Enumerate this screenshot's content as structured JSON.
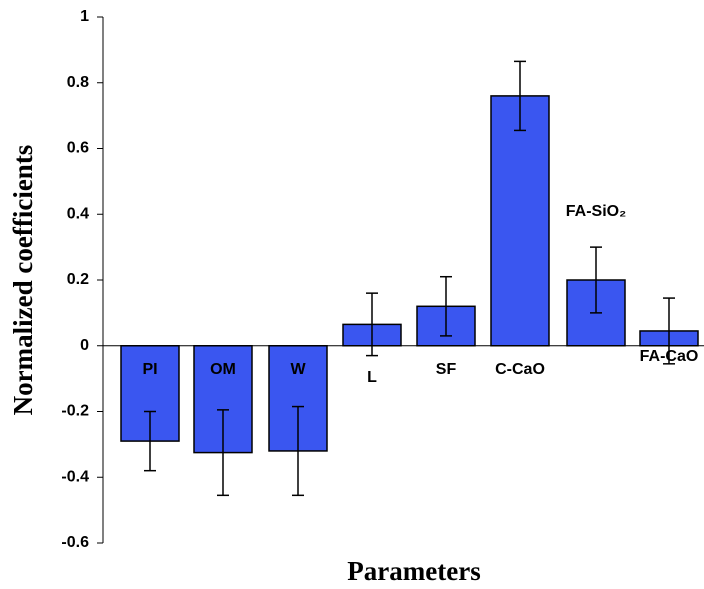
{
  "chart_data": {
    "type": "bar",
    "xlabel": "Parameters",
    "ylabel": "Normalized coefficients",
    "categories": [
      "PI",
      "OM",
      "W",
      "L",
      "SF",
      "C-CaO",
      "FA-SiO₂",
      "FA-CaO"
    ],
    "values": [
      -0.29,
      -0.325,
      -0.32,
      0.065,
      0.12,
      0.76,
      0.2,
      0.045
    ],
    "errors": [
      0.09,
      0.13,
      0.135,
      0.095,
      0.09,
      0.105,
      0.1,
      0.1
    ],
    "color": "#3a56f0",
    "ylim": [
      -0.6,
      1
    ],
    "yticks": [
      -0.6,
      -0.4,
      -0.2,
      0,
      0.2,
      0.4,
      0.6,
      0.8,
      1
    ]
  }
}
